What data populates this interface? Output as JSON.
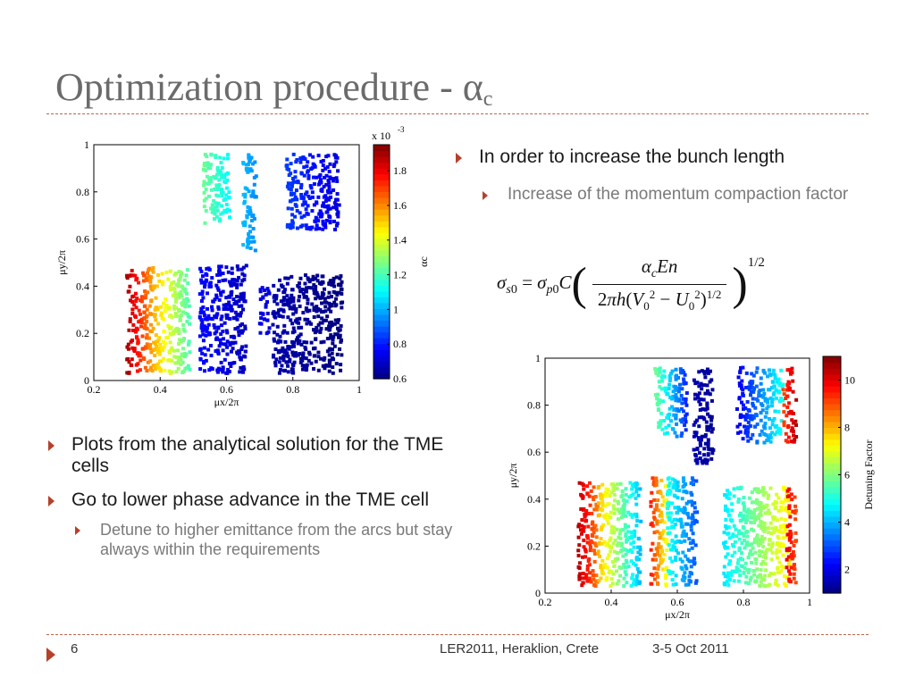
{
  "slide": {
    "title_main": "Optimization procedure - α",
    "title_sub": "c",
    "bullets_right": [
      {
        "level": 1,
        "text": "In order to increase the bunch length"
      },
      {
        "level": 2,
        "text": "Increase of the momentum compaction factor"
      }
    ],
    "bullets_left": [
      {
        "level": 1,
        "text": "Plots from the analytical solution for the TME cells"
      },
      {
        "level": 1,
        "text": "Go to lower phase advance in the TME cell"
      },
      {
        "level": 2,
        "text": "Detune to higher emittance from the arcs but stay always within the requirements"
      }
    ],
    "footer": {
      "page_number": "6",
      "conference": "LER2011, Heraklion, Crete",
      "date": "3-5 Oct 2011"
    },
    "colors": {
      "title": "#6b6b6b",
      "accent": "#b5412b",
      "rule": "#b9644a"
    }
  },
  "chart_data": [
    {
      "type": "scatter",
      "xlabel": "μx/2π",
      "ylabel": "μy/2π",
      "xlim": [
        0.2,
        1
      ],
      "ylim": [
        0,
        1
      ],
      "x_ticks": [
        "0.2",
        "0.4",
        "0.6",
        "0.8",
        "1"
      ],
      "y_ticks": [
        "0",
        "0.2",
        "0.4",
        "0.6",
        "0.8",
        "1"
      ],
      "colorbar": {
        "label": "αc",
        "range": [
          0.6,
          1.95
        ],
        "ticks": [
          "0.6",
          "0.8",
          "1",
          "1.2",
          "1.4",
          "1.6",
          "1.8"
        ],
        "scale_label": "x 10",
        "scale_exp": "-3"
      },
      "regions": [
        {
          "x": [
            0.3,
            0.38
          ],
          "y": [
            0.03,
            0.48
          ],
          "c": [
            1.9,
            1.55
          ]
        },
        {
          "x": [
            0.38,
            0.49
          ],
          "y": [
            0.03,
            0.47
          ],
          "c": [
            1.55,
            1.2
          ]
        },
        {
          "x": [
            0.52,
            0.66
          ],
          "y": [
            0.03,
            0.49
          ],
          "c": [
            0.78,
            0.68
          ]
        },
        {
          "x": [
            0.7,
            0.73
          ],
          "y": [
            0.2,
            0.4
          ],
          "c": [
            0.74,
            0.72
          ]
        },
        {
          "x": [
            0.74,
            0.95
          ],
          "y": [
            0.03,
            0.45
          ],
          "c": [
            0.66,
            0.6
          ]
        },
        {
          "x": [
            0.53,
            0.61
          ],
          "y": [
            0.66,
            0.96
          ],
          "c": [
            1.25,
            1.1
          ]
        },
        {
          "x": [
            0.65,
            0.69
          ],
          "y": [
            0.55,
            0.96
          ],
          "c": [
            1.02,
            0.95
          ]
        },
        {
          "x": [
            0.78,
            0.94
          ],
          "y": [
            0.64,
            0.96
          ],
          "c": [
            0.85,
            0.72
          ]
        }
      ]
    },
    {
      "type": "scatter",
      "xlabel": "μx/2π",
      "ylabel": "μy/2π",
      "xlim": [
        0.2,
        1
      ],
      "ylim": [
        0,
        1
      ],
      "x_ticks": [
        "0.2",
        "0.4",
        "0.6",
        "0.8",
        "1"
      ],
      "y_ticks": [
        "0",
        "0.2",
        "0.4",
        "0.6",
        "0.8",
        "1"
      ],
      "colorbar": {
        "label": "Detuning Factor",
        "range": [
          1,
          11
        ],
        "ticks": [
          "2",
          "4",
          "6",
          "8",
          "10"
        ]
      },
      "regions": [
        {
          "x": [
            0.3,
            0.36
          ],
          "y": [
            0.03,
            0.48
          ],
          "c": [
            10.5,
            8.5
          ]
        },
        {
          "x": [
            0.36,
            0.49
          ],
          "y": [
            0.03,
            0.47
          ],
          "c": [
            8.0,
            4.0
          ]
        },
        {
          "x": [
            0.52,
            0.57
          ],
          "y": [
            0.03,
            0.49
          ],
          "c": [
            9.5,
            7.0
          ]
        },
        {
          "x": [
            0.57,
            0.66
          ],
          "y": [
            0.03,
            0.49
          ],
          "c": [
            5.0,
            3.0
          ]
        },
        {
          "x": [
            0.74,
            0.94
          ],
          "y": [
            0.03,
            0.45
          ],
          "c": [
            4.5,
            7.5
          ]
        },
        {
          "x": [
            0.93,
            0.96
          ],
          "y": [
            0.03,
            0.45
          ],
          "c": [
            10.0,
            9.0
          ]
        },
        {
          "x": [
            0.53,
            0.63
          ],
          "y": [
            0.66,
            0.96
          ],
          "c": [
            6.0,
            2.5
          ]
        },
        {
          "x": [
            0.65,
            0.71
          ],
          "y": [
            0.55,
            0.96
          ],
          "c": [
            1.5,
            1.2
          ]
        },
        {
          "x": [
            0.78,
            0.92
          ],
          "y": [
            0.64,
            0.96
          ],
          "c": [
            2.0,
            5.0
          ]
        },
        {
          "x": [
            0.92,
            0.96
          ],
          "y": [
            0.64,
            0.96
          ],
          "c": [
            9.0,
            10.5
          ]
        }
      ]
    }
  ]
}
